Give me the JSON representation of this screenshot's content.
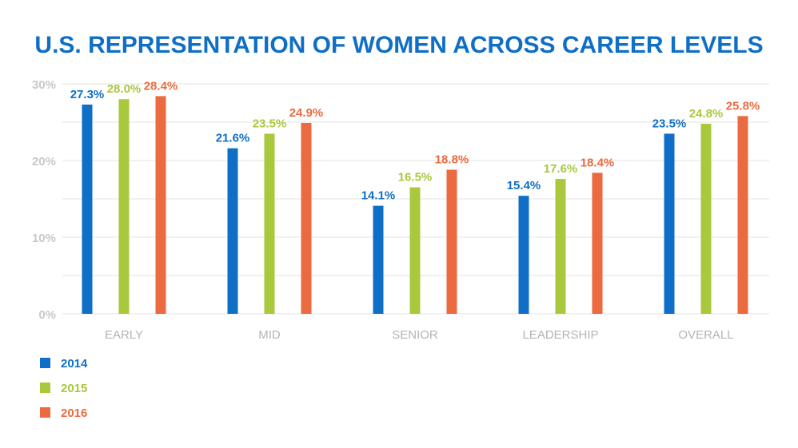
{
  "chart_data": {
    "type": "bar",
    "title": "U.S. REPRESENTATION OF WOMEN ACROSS CAREER LEVELS",
    "categories": [
      "EARLY",
      "MID",
      "SENIOR",
      "LEADERSHIP",
      "OVERALL"
    ],
    "series": [
      {
        "name": "2014",
        "color": "#0f6fc6",
        "values": [
          27.3,
          21.6,
          14.1,
          15.4,
          23.5
        ],
        "labels": [
          "27.3%",
          "21.6%",
          "14.1%",
          "15.4%",
          "23.5%"
        ]
      },
      {
        "name": "2015",
        "color": "#a9c83c",
        "values": [
          28.0,
          23.5,
          16.5,
          17.6,
          24.8
        ],
        "labels": [
          "28.0%",
          "23.5%",
          "16.5%",
          "17.6%",
          "24.8%"
        ]
      },
      {
        "name": "2016",
        "color": "#eb6a3f",
        "values": [
          28.4,
          24.9,
          18.8,
          18.4,
          25.8
        ],
        "labels": [
          "28.4%",
          "24.9%",
          "18.8%",
          "18.4%",
          "25.8%"
        ]
      }
    ],
    "ylim": [
      0,
      30
    ],
    "yticks": [
      0,
      10,
      20,
      30
    ],
    "ytick_labels": [
      "0%",
      "10%",
      "20%",
      "30%"
    ],
    "xlabel": "",
    "ylabel": "",
    "grid": true,
    "legend_position": "bottom-left",
    "title_color": "#0f6fc6"
  }
}
